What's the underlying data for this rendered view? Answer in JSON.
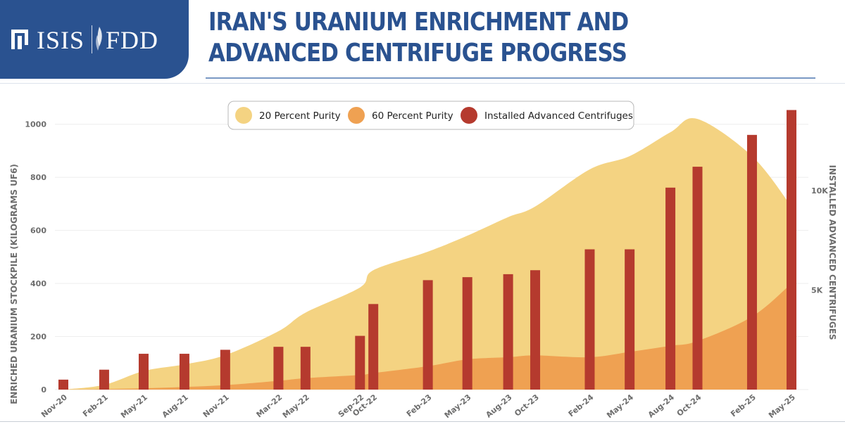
{
  "header": {
    "logo_left": "ISIS",
    "logo_right": "FDD",
    "title": "IRAN'S URANIUM ENRICHMENT AND ADVANCED CENTRIFUGE PROGRESS"
  },
  "chart_data": {
    "type": "area",
    "x": [
      "Nov-20",
      "Feb-21",
      "May-21",
      "Aug-21",
      "Nov-21",
      "Mar-22",
      "May-22",
      "Sep-22",
      "Oct-22",
      "Feb-23",
      "May-23",
      "Aug-23",
      "Oct-23",
      "Feb-24",
      "May-24",
      "Aug-24",
      "Oct-24",
      "Feb-25",
      "May-25"
    ],
    "x_dates": [
      "2020-11-01",
      "2021-02-01",
      "2021-05-01",
      "2021-08-01",
      "2021-11-01",
      "2022-03-01",
      "2022-05-01",
      "2022-09-01",
      "2022-10-01",
      "2023-02-01",
      "2023-05-01",
      "2023-08-01",
      "2023-10-01",
      "2024-02-01",
      "2024-05-01",
      "2024-08-01",
      "2024-10-01",
      "2025-02-01",
      "2025-05-01"
    ],
    "series": [
      {
        "name": "20 Percent Purity",
        "axis": "left",
        "color": "#f4d382",
        "values": [
          0,
          18,
          70,
          95,
          130,
          220,
          290,
          385,
          450,
          520,
          580,
          650,
          690,
          830,
          880,
          970,
          1020,
          880,
          690
        ]
      },
      {
        "name": "60 Percent Purity",
        "axis": "left",
        "color": "#efa152",
        "values": [
          0,
          2,
          5,
          10,
          17,
          33,
          43,
          55,
          62,
          88,
          114,
          122,
          129,
          122,
          142,
          165,
          183,
          275,
          400
        ]
      },
      {
        "name": "Installed Advanced Centrifuges",
        "axis": "right",
        "type": "bar",
        "color": "#b53a2e",
        "values": [
          500,
          1000,
          1800,
          1800,
          2000,
          2150,
          2150,
          2700,
          4300,
          5500,
          5650,
          5800,
          6000,
          7050,
          7050,
          10150,
          11200,
          12800,
          14050
        ]
      }
    ],
    "ylabel": "ENRICHED URANIUM STOCKPILE (KILOGRAMS UF6)",
    "y2label": "INSTALLED ADVANCED CENTRIFUGES",
    "y_ticks": [
      "0",
      "200",
      "400",
      "600",
      "800",
      "1000"
    ],
    "ylim": [
      0,
      1100
    ],
    "y2_ticks": [
      "5K",
      "10K"
    ],
    "y2lim": [
      0,
      14667
    ],
    "legend": "top-center",
    "grid": true
  }
}
